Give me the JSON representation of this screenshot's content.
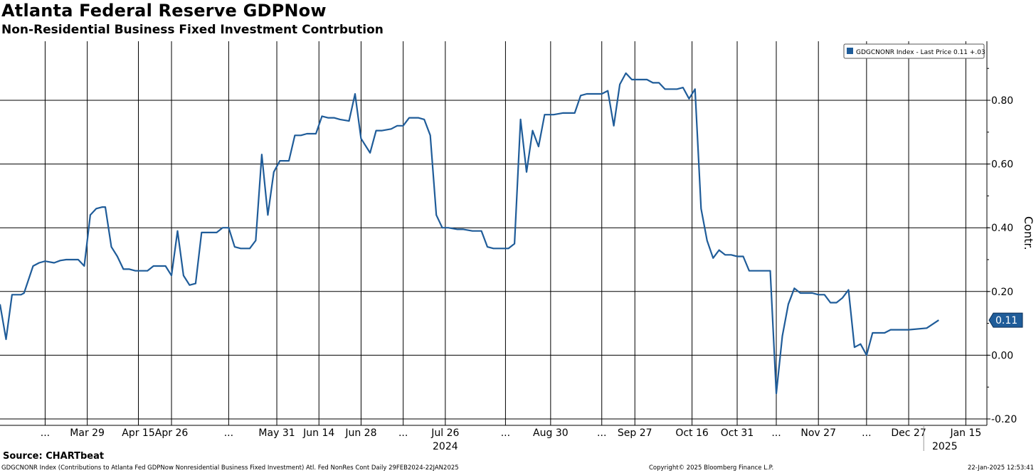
{
  "title": "Atlanta Federal Reserve GDPNow",
  "subtitle": "Non-Residential Business Fixed Investment Contrbution",
  "source": "Source: CHARTbeat",
  "footer": {
    "left": "GDGCNONR Index (Contributions to Atlanta Fed GDPNow Nonresidential Business Fixed Investment) Atl. Fed NonRes Cont  Daily 29FEB2024-22JAN2025",
    "center": "Copyright© 2025 Bloomberg Finance L.P.",
    "right": "22-Jan-2025 12:53:41"
  },
  "colors": {
    "line": "#1f5c99",
    "grid": "#000000",
    "label_bg": "#1f5c99"
  },
  "chart_data": {
    "type": "line",
    "title": "Atlanta Federal Reserve GDPNow",
    "subtitle": "Non-Residential Business Fixed Investment Contrbution",
    "ylabel": "Contr.",
    "ylim": [
      -0.2,
      0.9
    ],
    "yticks": [
      -0.2,
      0.0,
      0.2,
      0.4,
      0.6,
      0.8
    ],
    "ytick_labels": [
      "-0.20",
      "0.00",
      "0.20",
      "0.40",
      "0.60",
      "0.80"
    ],
    "grid": true,
    "legend": {
      "position": "top-right",
      "entry": "GDGCNONR Index - Last Price 0.11  +.03"
    },
    "last_value_label": "0.11",
    "x_ticks": [
      {
        "date": "2024-03-15",
        "label": "..."
      },
      {
        "date": "2024-03-29",
        "label": "Mar 29"
      },
      {
        "date": "2024-04-15",
        "label": "Apr 15"
      },
      {
        "date": "2024-04-26",
        "label": "Apr 26"
      },
      {
        "date": "2024-05-15",
        "label": "..."
      },
      {
        "date": "2024-05-31",
        "label": "May 31"
      },
      {
        "date": "2024-06-14",
        "label": "Jun 14"
      },
      {
        "date": "2024-06-28",
        "label": "Jun 28"
      },
      {
        "date": "2024-07-12",
        "label": "..."
      },
      {
        "date": "2024-07-26",
        "label": "Jul 26"
      },
      {
        "date": "2024-08-15",
        "label": "..."
      },
      {
        "date": "2024-08-30",
        "label": "Aug 30"
      },
      {
        "date": "2024-09-16",
        "label": "..."
      },
      {
        "date": "2024-09-27",
        "label": "Sep 27"
      },
      {
        "date": "2024-10-16",
        "label": "Oct 16"
      },
      {
        "date": "2024-10-31",
        "label": "Oct 31"
      },
      {
        "date": "2024-11-13",
        "label": "..."
      },
      {
        "date": "2024-11-27",
        "label": "Nov 27"
      },
      {
        "date": "2024-12-13",
        "label": "..."
      },
      {
        "date": "2024-12-27",
        "label": "Dec 27"
      },
      {
        "date": "2025-01-15",
        "label": "Jan 15"
      }
    ],
    "year_labels": [
      {
        "date": "2024-07-26",
        "label": "2024"
      },
      {
        "date": "2025-01-08",
        "label": "2025"
      }
    ],
    "series": [
      {
        "name": "GDGCNONR Index",
        "points": [
          [
            "2024-02-29",
            0.16
          ],
          [
            "2024-03-02",
            0.05
          ],
          [
            "2024-03-04",
            0.19
          ],
          [
            "2024-03-07",
            0.19
          ],
          [
            "2024-03-08",
            0.195
          ],
          [
            "2024-03-11",
            0.28
          ],
          [
            "2024-03-13",
            0.29
          ],
          [
            "2024-03-15",
            0.295
          ],
          [
            "2024-03-18",
            0.29
          ],
          [
            "2024-03-20",
            0.297
          ],
          [
            "2024-03-22",
            0.3
          ],
          [
            "2024-03-26",
            0.3
          ],
          [
            "2024-03-28",
            0.28
          ],
          [
            "2024-03-30",
            0.44
          ],
          [
            "2024-04-01",
            0.46
          ],
          [
            "2024-04-03",
            0.465
          ],
          [
            "2024-04-04",
            0.465
          ],
          [
            "2024-04-06",
            0.34
          ],
          [
            "2024-04-08",
            0.31
          ],
          [
            "2024-04-10",
            0.27
          ],
          [
            "2024-04-12",
            0.27
          ],
          [
            "2024-04-14",
            0.265
          ],
          [
            "2024-04-17",
            0.265
          ],
          [
            "2024-04-18",
            0.265
          ],
          [
            "2024-04-20",
            0.28
          ],
          [
            "2024-04-22",
            0.28
          ],
          [
            "2024-04-24",
            0.28
          ],
          [
            "2024-04-26",
            0.25
          ],
          [
            "2024-04-28",
            0.39
          ],
          [
            "2024-04-30",
            0.25
          ],
          [
            "2024-05-02",
            0.22
          ],
          [
            "2024-05-04",
            0.225
          ],
          [
            "2024-05-06",
            0.385
          ],
          [
            "2024-05-08",
            0.385
          ],
          [
            "2024-05-11",
            0.385
          ],
          [
            "2024-05-13",
            0.4
          ],
          [
            "2024-05-15",
            0.4
          ],
          [
            "2024-05-17",
            0.34
          ],
          [
            "2024-05-19",
            0.335
          ],
          [
            "2024-05-22",
            0.335
          ],
          [
            "2024-05-24",
            0.36
          ],
          [
            "2024-05-26",
            0.63
          ],
          [
            "2024-05-28",
            0.44
          ],
          [
            "2024-05-30",
            0.575
          ],
          [
            "2024-06-01",
            0.61
          ],
          [
            "2024-06-04",
            0.61
          ],
          [
            "2024-06-06",
            0.69
          ],
          [
            "2024-06-08",
            0.69
          ],
          [
            "2024-06-10",
            0.695
          ],
          [
            "2024-06-13",
            0.695
          ],
          [
            "2024-06-15",
            0.75
          ],
          [
            "2024-06-17",
            0.745
          ],
          [
            "2024-06-19",
            0.745
          ],
          [
            "2024-06-21",
            0.74
          ],
          [
            "2024-06-24",
            0.735
          ],
          [
            "2024-06-26",
            0.82
          ],
          [
            "2024-06-28",
            0.68
          ],
          [
            "2024-07-01",
            0.635
          ],
          [
            "2024-07-03",
            0.705
          ],
          [
            "2024-07-05",
            0.705
          ],
          [
            "2024-07-08",
            0.71
          ],
          [
            "2024-07-10",
            0.72
          ],
          [
            "2024-07-12",
            0.72
          ],
          [
            "2024-07-14",
            0.745
          ],
          [
            "2024-07-17",
            0.745
          ],
          [
            "2024-07-19",
            0.74
          ],
          [
            "2024-07-21",
            0.69
          ],
          [
            "2024-07-23",
            0.44
          ],
          [
            "2024-07-25",
            0.4
          ],
          [
            "2024-07-27",
            0.4
          ],
          [
            "2024-07-30",
            0.395
          ],
          [
            "2024-08-01",
            0.395
          ],
          [
            "2024-08-04",
            0.39
          ],
          [
            "2024-08-07",
            0.39
          ],
          [
            "2024-08-09",
            0.34
          ],
          [
            "2024-08-11",
            0.335
          ],
          [
            "2024-08-14",
            0.335
          ],
          [
            "2024-08-16",
            0.335
          ],
          [
            "2024-08-18",
            0.35
          ],
          [
            "2024-08-20",
            0.74
          ],
          [
            "2024-08-22",
            0.575
          ],
          [
            "2024-08-24",
            0.705
          ],
          [
            "2024-08-26",
            0.655
          ],
          [
            "2024-08-28",
            0.755
          ],
          [
            "2024-08-31",
            0.755
          ],
          [
            "2024-09-03",
            0.76
          ],
          [
            "2024-09-05",
            0.76
          ],
          [
            "2024-09-07",
            0.76
          ],
          [
            "2024-09-09",
            0.815
          ],
          [
            "2024-09-11",
            0.82
          ],
          [
            "2024-09-14",
            0.82
          ],
          [
            "2024-09-16",
            0.82
          ],
          [
            "2024-09-18",
            0.83
          ],
          [
            "2024-09-20",
            0.72
          ],
          [
            "2024-09-22",
            0.85
          ],
          [
            "2024-09-24",
            0.885
          ],
          [
            "2024-09-26",
            0.865
          ],
          [
            "2024-09-28",
            0.865
          ],
          [
            "2024-10-01",
            0.865
          ],
          [
            "2024-10-03",
            0.855
          ],
          [
            "2024-10-05",
            0.855
          ],
          [
            "2024-10-07",
            0.835
          ],
          [
            "2024-10-09",
            0.835
          ],
          [
            "2024-10-11",
            0.835
          ],
          [
            "2024-10-13",
            0.84
          ],
          [
            "2024-10-15",
            0.805
          ],
          [
            "2024-10-17",
            0.835
          ],
          [
            "2024-10-19",
            0.46
          ],
          [
            "2024-10-21",
            0.36
          ],
          [
            "2024-10-23",
            0.305
          ],
          [
            "2024-10-25",
            0.33
          ],
          [
            "2024-10-27",
            0.315
          ],
          [
            "2024-10-29",
            0.315
          ],
          [
            "2024-10-31",
            0.31
          ],
          [
            "2024-11-02",
            0.31
          ],
          [
            "2024-11-04",
            0.265
          ],
          [
            "2024-11-06",
            0.265
          ],
          [
            "2024-11-09",
            0.265
          ],
          [
            "2024-11-11",
            0.265
          ],
          [
            "2024-11-13",
            -0.12
          ],
          [
            "2024-11-15",
            0.06
          ],
          [
            "2024-11-17",
            0.16
          ],
          [
            "2024-11-19",
            0.21
          ],
          [
            "2024-11-21",
            0.195
          ],
          [
            "2024-11-23",
            0.195
          ],
          [
            "2024-11-25",
            0.195
          ],
          [
            "2024-11-27",
            0.19
          ],
          [
            "2024-11-29",
            0.19
          ],
          [
            "2024-12-01",
            0.165
          ],
          [
            "2024-12-03",
            0.165
          ],
          [
            "2024-12-05",
            0.18
          ],
          [
            "2024-12-07",
            0.205
          ],
          [
            "2024-12-09",
            0.025
          ],
          [
            "2024-12-11",
            0.035
          ],
          [
            "2024-12-13",
            0.0
          ],
          [
            "2024-12-15",
            0.07
          ],
          [
            "2024-12-17",
            0.07
          ],
          [
            "2024-12-19",
            0.07
          ],
          [
            "2024-12-21",
            0.08
          ],
          [
            "2024-12-23",
            0.08
          ],
          [
            "2024-12-27",
            0.08
          ],
          [
            "2025-01-02",
            0.085
          ],
          [
            "2025-01-06",
            0.11
          ]
        ]
      }
    ]
  }
}
